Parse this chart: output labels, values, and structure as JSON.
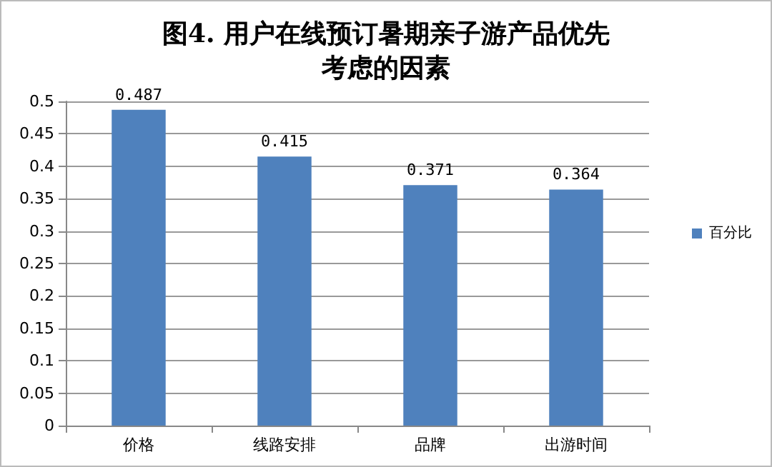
{
  "chart_data": {
    "type": "bar",
    "title": "图4. 用户在线预订暑期亲子游产品优先考虑的因素",
    "categories": [
      "价格",
      "线路安排",
      "品牌",
      "出游时间"
    ],
    "series": [
      {
        "name": "百分比",
        "color": "#4f81bd",
        "values": [
          0.487,
          0.415,
          0.371,
          0.364
        ]
      }
    ],
    "ylim": [
      0,
      0.5
    ],
    "yticks": [
      0,
      0.05,
      0.1,
      0.15,
      0.2,
      0.25,
      0.3,
      0.35,
      0.4,
      0.45,
      0.5
    ],
    "grid": "y",
    "legend": "right",
    "data_labels": true
  }
}
